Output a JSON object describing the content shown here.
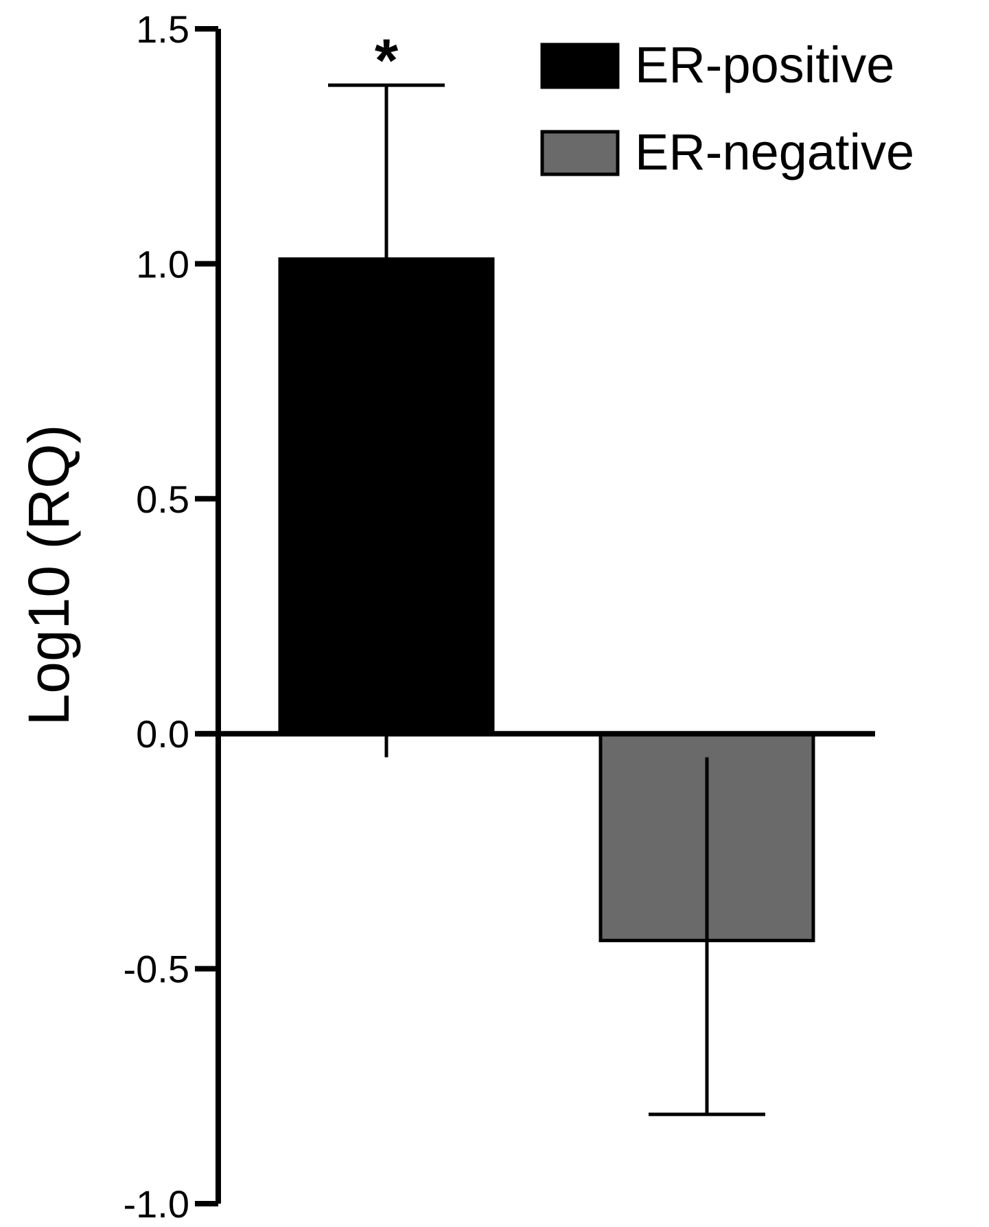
{
  "chart_data": {
    "type": "bar",
    "title": "",
    "xlabel": "",
    "ylabel": "Log10 (RQ)",
    "ylim": [
      -1.0,
      1.5
    ],
    "yticks": [
      1.5,
      1.0,
      0.5,
      0.0,
      -0.5,
      -1.0
    ],
    "ytick_labels": [
      "1.5",
      "1.0",
      "0.5",
      "0.0",
      "-0.5",
      "-1.0"
    ],
    "grid": false,
    "legend_position": "top-right",
    "series": [
      {
        "name": "ER-positive",
        "value": 1.01,
        "error_upper": 1.38,
        "error_lower": -0.05,
        "color": "#000000",
        "annotation": "*"
      },
      {
        "name": "ER-negative",
        "value": -0.44,
        "error_upper": -0.05,
        "error_lower": -0.81,
        "color": "#6a6a6a",
        "annotation": ""
      }
    ]
  }
}
